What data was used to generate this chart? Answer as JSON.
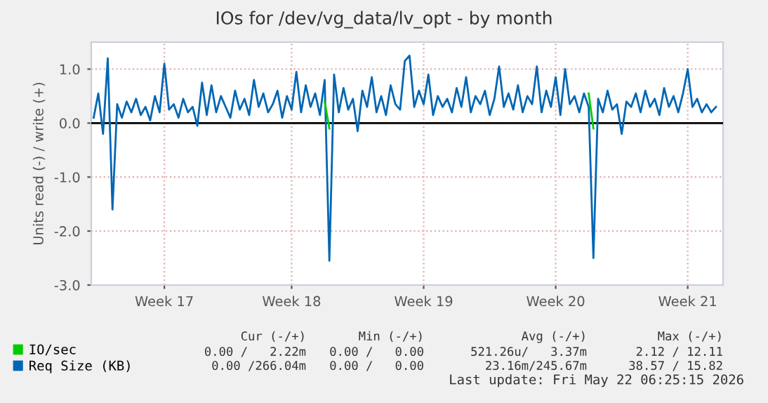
{
  "chart_data": {
    "type": "line",
    "title": "IOs for /dev/vg_data/lv_opt - by month",
    "ylabel": "Units read (-) / write (+)",
    "categories": [
      null,
      null,
      null,
      null,
      null,
      null,
      null,
      null,
      null,
      null,
      null,
      null,
      null,
      null,
      null,
      "Week 17",
      null,
      null,
      null,
      null,
      null,
      null,
      null,
      null,
      null,
      null,
      null,
      null,
      null,
      null,
      null,
      null,
      null,
      null,
      null,
      null,
      null,
      null,
      null,
      null,
      null,
      null,
      "Week 18",
      null,
      null,
      null,
      null,
      null,
      null,
      null,
      null,
      null,
      null,
      null,
      null,
      null,
      null,
      null,
      null,
      null,
      null,
      null,
      null,
      null,
      null,
      null,
      null,
      null,
      null,
      null,
      "Week 19",
      null,
      null,
      null,
      null,
      null,
      null,
      null,
      null,
      null,
      null,
      null,
      null,
      null,
      null,
      null,
      null,
      null,
      null,
      null,
      null,
      null,
      null,
      null,
      null,
      null,
      null,
      null,
      "Week 20",
      null,
      null,
      null,
      null,
      null,
      null,
      null,
      null,
      null,
      null,
      null,
      null,
      null,
      null,
      null,
      null,
      null,
      null,
      null,
      null,
      null,
      null,
      null,
      null,
      null,
      null,
      null,
      "Week 21",
      null,
      null,
      null,
      null,
      null,
      null
    ],
    "ylim": [
      -3,
      1.5
    ],
    "yticks": [
      {
        "value": -3,
        "label": "-3.0"
      },
      {
        "value": -2,
        "label": "-2.0"
      },
      {
        "value": -1,
        "label": "-1.0"
      },
      {
        "value": 0,
        "label": "0.0"
      },
      {
        "value": 1,
        "label": "1.0"
      }
    ],
    "grid": true,
    "legend": "bottom left",
    "line_style": "solid",
    "marker": "none",
    "series": [
      {
        "name": "IO/sec",
        "color": "#00cc00",
        "values": [
          null,
          null,
          null,
          null,
          null,
          null,
          null,
          null,
          null,
          null,
          null,
          null,
          null,
          null,
          null,
          null,
          null,
          null,
          null,
          null,
          null,
          null,
          null,
          null,
          null,
          null,
          null,
          null,
          null,
          null,
          null,
          null,
          null,
          null,
          null,
          null,
          null,
          null,
          null,
          null,
          null,
          null,
          null,
          null,
          null,
          null,
          null,
          null,
          null,
          0.4,
          -0.1,
          null,
          null,
          null,
          null,
          null,
          null,
          null,
          null,
          null,
          null,
          null,
          null,
          null,
          null,
          null,
          null,
          null,
          null,
          null,
          null,
          null,
          null,
          null,
          null,
          null,
          null,
          null,
          null,
          null,
          null,
          null,
          null,
          null,
          null,
          null,
          null,
          null,
          null,
          null,
          null,
          null,
          null,
          null,
          null,
          null,
          null,
          null,
          null,
          null,
          null,
          null,
          null,
          null,
          null,
          0.55,
          -0.1,
          null,
          null,
          null,
          null,
          null,
          null,
          null,
          null,
          null,
          null,
          null,
          null,
          null,
          null,
          null,
          null,
          null,
          null,
          null,
          null,
          null,
          null,
          null,
          null,
          null,
          null
        ]
      },
      {
        "name": "Req Size (KB)",
        "color": "#0066b3",
        "values": [
          0.1,
          0.55,
          -0.2,
          1.2,
          -1.6,
          0.35,
          0.1,
          0.4,
          0.2,
          0.45,
          0.15,
          0.3,
          0.05,
          0.5,
          0.2,
          1.1,
          0.25,
          0.35,
          0.1,
          0.45,
          0.2,
          0.3,
          -0.05,
          0.75,
          0.15,
          0.7,
          0.2,
          0.5,
          0.3,
          0.1,
          0.6,
          0.25,
          0.45,
          0.15,
          0.8,
          0.3,
          0.55,
          0.2,
          0.35,
          0.6,
          0.1,
          0.5,
          0.25,
          0.95,
          0.2,
          0.7,
          0.3,
          0.55,
          0.15,
          0.8,
          -2.55,
          0.9,
          0.2,
          0.65,
          0.25,
          0.45,
          -0.15,
          0.6,
          0.3,
          0.85,
          0.2,
          0.5,
          0.15,
          0.7,
          0.35,
          0.25,
          1.15,
          1.25,
          0.3,
          0.6,
          0.35,
          0.9,
          0.15,
          0.5,
          0.3,
          0.45,
          0.2,
          0.65,
          0.3,
          0.85,
          0.2,
          0.5,
          0.35,
          0.6,
          0.15,
          0.45,
          1.05,
          0.3,
          0.55,
          0.25,
          0.7,
          0.2,
          0.5,
          0.35,
          1.05,
          0.2,
          0.6,
          0.3,
          0.85,
          0.15,
          1.0,
          0.35,
          0.5,
          0.2,
          0.55,
          0.3,
          -2.5,
          0.45,
          0.2,
          0.6,
          0.25,
          0.35,
          -0.2,
          0.4,
          0.3,
          0.55,
          0.2,
          0.6,
          0.3,
          0.45,
          0.15,
          0.65,
          0.3,
          0.5,
          0.2,
          0.55,
          1.0,
          0.3,
          0.45,
          0.2,
          0.35,
          0.2,
          0.3
        ]
      }
    ],
    "ref_lines": [
      {
        "axis": "y",
        "value": 0,
        "color": "#000000"
      }
    ],
    "annotations": [
      "Cur (-/+)",
      "Min (-/+)",
      "Avg (-/+)",
      "Max (-/+)",
      "0.00 /   2.22m",
      "0.00 /   0.00",
      "521.26u/   3.37m",
      "2.12 / 12.11",
      "0.00 /266.04m",
      "0.00 /   0.00",
      "23.16m/245.67m",
      "38.57 / 15.82",
      "Last update: Fri May 22 06:25:15 2026"
    ]
  }
}
